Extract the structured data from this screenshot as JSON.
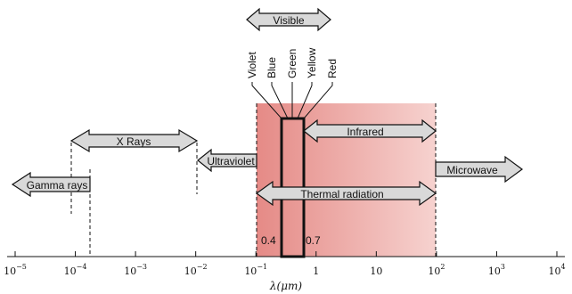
{
  "visible_label": "Visible",
  "colors": [
    "Violet",
    "Blue",
    "Green",
    "Yellow",
    "Red"
  ],
  "bands": {
    "gamma": "Gamma rays",
    "xray": "X Rays",
    "uv": "Ultraviolet",
    "ir": "Infrared",
    "microwave": "Microwave",
    "thermal": "Thermal radiation"
  },
  "visible_bounds": {
    "low": "0.4",
    "high": "0.7"
  },
  "axis": {
    "ticks": [
      {
        "base": "10",
        "exp": "−5"
      },
      {
        "base": "10",
        "exp": "−4"
      },
      {
        "base": "10",
        "exp": "−3"
      },
      {
        "base": "10",
        "exp": "−2"
      },
      {
        "base": "10",
        "exp": "−1"
      },
      {
        "base": "1",
        "exp": ""
      },
      {
        "base": "10",
        "exp": ""
      },
      {
        "base": "10",
        "exp": "2"
      },
      {
        "base": "10",
        "exp": "3"
      },
      {
        "base": "10",
        "exp": "4"
      }
    ],
    "title": "λ(μm)"
  },
  "palette": {
    "thermal_fill_left": "#e58a86",
    "thermal_fill_right": "#f6d2cf",
    "arrow_fill": "#d9d9d9",
    "stroke": "#111111"
  }
}
